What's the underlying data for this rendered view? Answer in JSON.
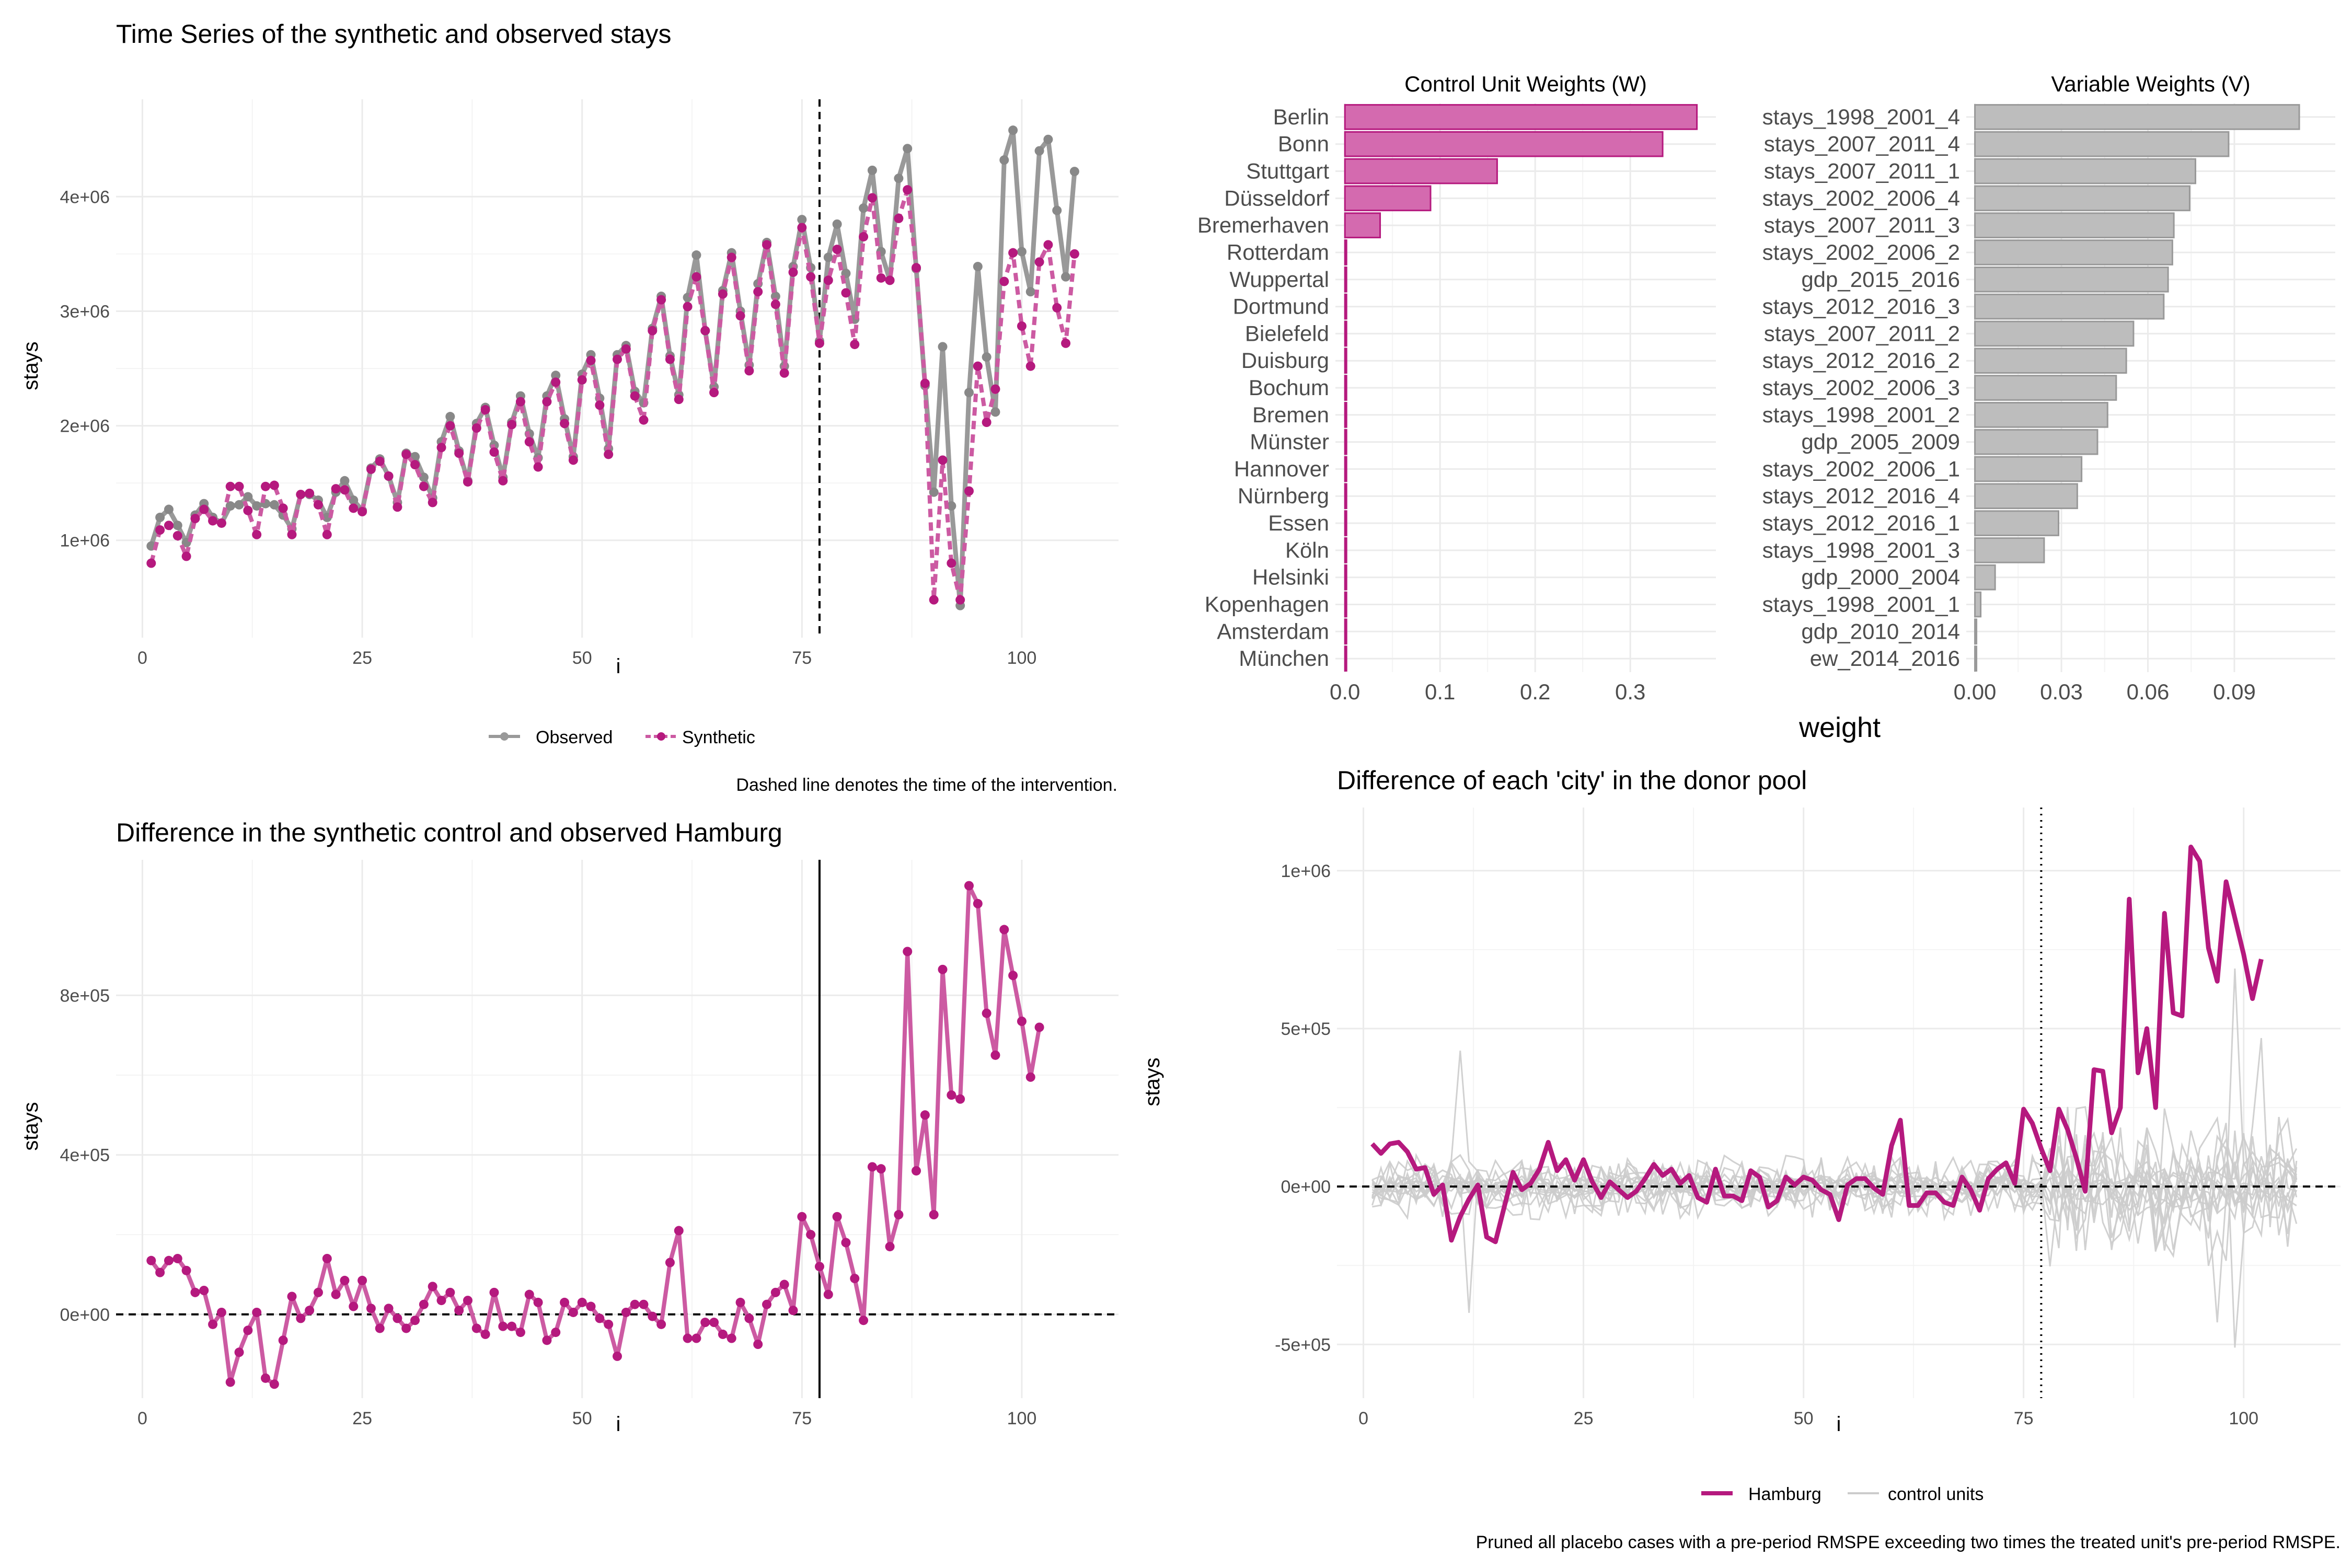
{
  "colors": {
    "magenta": "#b5197e",
    "magenta_light": "#cc5aa2",
    "magenta_fill": "#d46aaf",
    "gray_obs": "#999999",
    "gray_bar": "#bdbdbd",
    "gray_placebo": "#cccccc",
    "grid": "#ebebeb"
  },
  "panels": {
    "ts": {
      "title": "Time Series of the synthetic and observed stays",
      "xlabel": "i",
      "ylabel": "stays",
      "caption": "Dashed line denotes the time of the intervention.",
      "legend": {
        "observed": "Observed",
        "synthetic": "Synthetic"
      }
    },
    "weights": {
      "w_title": "Control Unit Weights (W)",
      "v_title": "Variable Weights (V)",
      "xlabel": "weight"
    },
    "diff": {
      "title": "Difference in the synthetic control and observed Hamburg",
      "xlabel": "i",
      "ylabel": "stays"
    },
    "placebo": {
      "title": "Difference of each 'city' in the donor pool",
      "xlabel": "i",
      "ylabel": "stays",
      "legend": {
        "treated": "Hamburg",
        "controls": "control units"
      },
      "caption": "Pruned all placebo cases with a pre-period RMSPE exceeding two times the treated unit's pre-period RMSPE."
    }
  },
  "chart_data": [
    {
      "type": "line",
      "title": "Time Series of the synthetic and observed stays",
      "xlabel": "i",
      "ylabel": "stays",
      "xlim": [
        -3,
        111
      ],
      "ylim": [
        150000,
        4850000
      ],
      "x_ticks": [
        0,
        25,
        50,
        75,
        100
      ],
      "y_ticks": [
        1000000,
        2000000,
        3000000,
        4000000
      ],
      "y_tick_labels": [
        "1e+06",
        "2e+06",
        "3e+06",
        "4e+06"
      ],
      "intervention": 77,
      "legend_position": "bottom",
      "series": [
        {
          "name": "Observed",
          "values": [
            950000,
            1200000,
            1270000,
            1130000,
            980000,
            1220000,
            1320000,
            1200000,
            1150000,
            1300000,
            1310000,
            1380000,
            1300000,
            1320000,
            1310000,
            1220000,
            1100000,
            1400000,
            1400000,
            1350000,
            1200000,
            1420000,
            1520000,
            1350000,
            1260000,
            1630000,
            1710000,
            1560000,
            1330000,
            1760000,
            1730000,
            1550000,
            1370000,
            1860000,
            2080000,
            1780000,
            1520000,
            2020000,
            2160000,
            1830000,
            1550000,
            2030000,
            2260000,
            1930000,
            1720000,
            2260000,
            2440000,
            2060000,
            1730000,
            2450000,
            2620000,
            2240000,
            1800000,
            2620000,
            2700000,
            2300000,
            2200000,
            2850000,
            3130000,
            2610000,
            2270000,
            3120000,
            3490000,
            2830000,
            2340000,
            3180000,
            3510000,
            3000000,
            2530000,
            3240000,
            3600000,
            3130000,
            2520000,
            3390000,
            3800000,
            3380000,
            2740000,
            3470000,
            3760000,
            3330000,
            2930000,
            3900000,
            4230000,
            3520000,
            3270000,
            4160000,
            4420000,
            3370000,
            2350000,
            1420000,
            2690000,
            1300000,
            430000,
            2290000,
            3390000,
            2600000,
            2120000,
            4320000,
            4580000,
            3520000,
            3170000,
            4400000,
            4500000,
            3880000,
            3300000,
            4220000
          ]
        },
        {
          "name": "Synthetic",
          "values": [
            800000,
            1090000,
            1130000,
            1040000,
            860000,
            1190000,
            1270000,
            1170000,
            1150000,
            1470000,
            1470000,
            1260000,
            1050000,
            1470000,
            1480000,
            1280000,
            1050000,
            1400000,
            1410000,
            1310000,
            1050000,
            1450000,
            1440000,
            1280000,
            1250000,
            1620000,
            1690000,
            1560000,
            1290000,
            1750000,
            1660000,
            1470000,
            1330000,
            1810000,
            2000000,
            1760000,
            1510000,
            1980000,
            2140000,
            1770000,
            1520000,
            2010000,
            2210000,
            1860000,
            1640000,
            2210000,
            2380000,
            2020000,
            1700000,
            2400000,
            2570000,
            2180000,
            1750000,
            2580000,
            2670000,
            2260000,
            2050000,
            2830000,
            3100000,
            2580000,
            2230000,
            3040000,
            3300000,
            2830000,
            2290000,
            3150000,
            3470000,
            2960000,
            2480000,
            3170000,
            3580000,
            3060000,
            2460000,
            3340000,
            3730000,
            3300000,
            2720000,
            3270000,
            3540000,
            3160000,
            2710000,
            3650000,
            3990000,
            3290000,
            3270000,
            3810000,
            4060000,
            3380000,
            2370000,
            480000,
            1700000,
            800000,
            480000,
            1430000,
            2520000,
            2030000,
            2320000,
            3260000,
            3510000,
            2870000,
            2520000,
            3430000,
            3580000,
            3030000,
            2720000,
            3500000
          ]
        }
      ]
    },
    {
      "type": "bar",
      "title": "Control Unit Weights (W)",
      "xlabel": "weight",
      "xlim": [
        -0.01,
        0.39
      ],
      "x_ticks": [
        0.0,
        0.1,
        0.2,
        0.3
      ],
      "x_tick_labels": [
        "0.0",
        "0.1",
        "0.2",
        "0.3"
      ],
      "categories": [
        "Berlin",
        "Bonn",
        "Stuttgart",
        "Düsseldorf",
        "Bremerhaven",
        "Rotterdam",
        "Wuppertal",
        "Dortmund",
        "Bielefeld",
        "Duisburg",
        "Bochum",
        "Bremen",
        "Münster",
        "Hannover",
        "Nürnberg",
        "Essen",
        "Köln",
        "Helsinki",
        "Kopenhagen",
        "Amsterdam",
        "München"
      ],
      "values": [
        0.37,
        0.334,
        0.16,
        0.09,
        0.037,
        0.0015,
        0.0012,
        0.0012,
        0.0012,
        0.0012,
        0.0012,
        0.0012,
        0.0012,
        0.0012,
        0.0012,
        0.0012,
        0.0012,
        0.0012,
        0.0012,
        0.0012,
        0.0012
      ]
    },
    {
      "type": "bar",
      "title": "Variable Weights (V)",
      "xlabel": "weight",
      "xlim": [
        -0.003,
        0.125
      ],
      "x_ticks": [
        0.0,
        0.03,
        0.06,
        0.09
      ],
      "x_tick_labels": [
        "0.00",
        "0.03",
        "0.06",
        "0.09"
      ],
      "categories": [
        "stays_1998_2001_4",
        "stays_2007_2011_4",
        "stays_2007_2011_1",
        "stays_2002_2006_4",
        "stays_2007_2011_3",
        "stays_2002_2006_2",
        "gdp_2015_2016",
        "stays_2012_2016_3",
        "stays_2007_2011_2",
        "stays_2012_2016_2",
        "stays_2002_2006_3",
        "stays_1998_2001_2",
        "gdp_2005_2009",
        "stays_2002_2006_1",
        "stays_2012_2016_4",
        "stays_2012_2016_1",
        "stays_1998_2001_3",
        "gdp_2000_2004",
        "stays_1998_2001_1",
        "gdp_2010_2014",
        "ew_2014_2016"
      ],
      "values": [
        0.1125,
        0.088,
        0.0765,
        0.0745,
        0.069,
        0.0685,
        0.067,
        0.0655,
        0.055,
        0.0525,
        0.049,
        0.046,
        0.0425,
        0.037,
        0.0355,
        0.029,
        0.024,
        0.007,
        0.002,
        0.0004,
        0.0002
      ]
    },
    {
      "type": "line",
      "title": "Difference in the synthetic control and observed Hamburg",
      "xlabel": "i",
      "ylabel": "stays",
      "xlim": [
        -3,
        111
      ],
      "ylim": [
        -210000,
        1140000
      ],
      "x_ticks": [
        0,
        25,
        50,
        75,
        100
      ],
      "y_ticks": [
        0,
        400000,
        800000
      ],
      "y_tick_labels": [
        "0e+00",
        "4e+05",
        "8e+05"
      ],
      "intervention": 77,
      "series": [
        {
          "name": "",
          "values": [
            135000,
            105000,
            135000,
            140000,
            110000,
            55000,
            60000,
            -25000,
            5000,
            -170000,
            -95000,
            -40000,
            5000,
            -160000,
            -175000,
            -65000,
            45000,
            -10000,
            10000,
            55000,
            140000,
            50000,
            85000,
            20000,
            85000,
            15000,
            -35000,
            15000,
            -10000,
            -35000,
            -15000,
            25000,
            70000,
            35000,
            55000,
            10000,
            35000,
            -35000,
            -50000,
            55000,
            -30000,
            -30000,
            -45000,
            50000,
            30000,
            -65000,
            -45000,
            30000,
            5000,
            30000,
            20000,
            -10000,
            -25000,
            -105000,
            5000,
            25000,
            25000,
            -5000,
            -25000,
            130000,
            210000,
            -60000,
            -60000,
            -20000,
            -20000,
            -50000,
            -60000,
            30000,
            -10000,
            -75000,
            25000,
            55000,
            75000,
            10000,
            245000,
            200000,
            120000,
            50000,
            245000,
            180000,
            90000,
            -15000,
            370000,
            365000,
            170000,
            250000,
            910000,
            360000,
            500000,
            250000,
            865000,
            550000,
            540000,
            1075000,
            1030000,
            755000,
            650000,
            965000,
            850000,
            735000,
            595000,
            720000
          ]
        }
      ]
    },
    {
      "type": "line",
      "title": "Difference of each 'city' in the donor pool",
      "xlabel": "i",
      "ylabel": "stays",
      "xlim": [
        -3,
        111
      ],
      "ylim": [
        -670000,
        1200000
      ],
      "x_ticks": [
        0,
        25,
        50,
        75,
        100
      ],
      "y_ticks": [
        -500000,
        0,
        500000,
        1000000
      ],
      "y_tick_labels": [
        "-5e+05",
        "0e+00",
        "5e+05",
        "1e+06"
      ],
      "intervention": 77,
      "legend_position": "bottom",
      "series": [
        {
          "name": "Hamburg",
          "values": [
            135000,
            105000,
            135000,
            140000,
            110000,
            55000,
            60000,
            -25000,
            5000,
            -170000,
            -95000,
            -40000,
            5000,
            -160000,
            -175000,
            -65000,
            45000,
            -10000,
            10000,
            55000,
            140000,
            50000,
            85000,
            20000,
            85000,
            15000,
            -35000,
            15000,
            -10000,
            -35000,
            -15000,
            25000,
            70000,
            35000,
            55000,
            10000,
            35000,
            -35000,
            -50000,
            55000,
            -30000,
            -30000,
            -45000,
            50000,
            30000,
            -65000,
            -45000,
            30000,
            5000,
            30000,
            20000,
            -10000,
            -25000,
            -105000,
            5000,
            25000,
            25000,
            -5000,
            -25000,
            130000,
            210000,
            -60000,
            -60000,
            -20000,
            -20000,
            -50000,
            -60000,
            30000,
            -10000,
            -75000,
            25000,
            55000,
            75000,
            10000,
            245000,
            200000,
            120000,
            50000,
            245000,
            180000,
            90000,
            -15000,
            370000,
            365000,
            170000,
            250000,
            910000,
            360000,
            500000,
            250000,
            865000,
            550000,
            540000,
            1075000,
            1030000,
            755000,
            650000,
            965000,
            850000,
            735000,
            595000,
            720000
          ]
        },
        {
          "name": "control units",
          "count": 16,
          "values": []
        }
      ]
    }
  ]
}
